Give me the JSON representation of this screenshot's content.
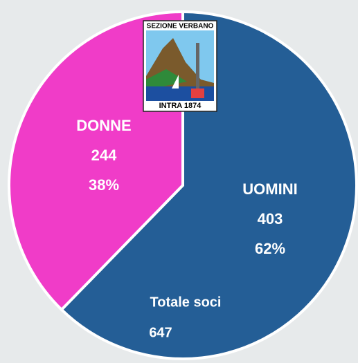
{
  "chart_data": {
    "type": "pie",
    "categories": [
      "UOMINI",
      "DONNE"
    ],
    "values": [
      403,
      244
    ],
    "percent_labels": [
      "62%",
      "38%"
    ],
    "colors": [
      "#245e96",
      "#f03cc8"
    ],
    "total_label": "Totale soci",
    "total": 647,
    "logo": {
      "top_text": "SEZIONE VERBANO",
      "bottom_text": "INTRA 1874"
    }
  }
}
